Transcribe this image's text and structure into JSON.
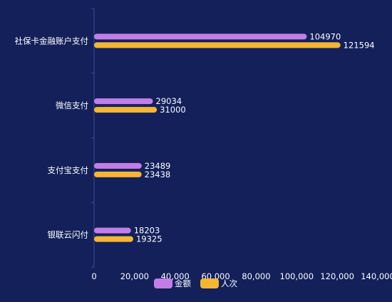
{
  "chart_data": {
    "type": "bar",
    "orientation": "horizontal",
    "categories": [
      "社保卡金融账户支付",
      "微信支付",
      "支付宝支付",
      "银联云闪付"
    ],
    "series": [
      {
        "name": "金额",
        "values": [
          104970,
          29034,
          23489,
          18203
        ],
        "color": "#c27ee6"
      },
      {
        "name": "人次",
        "values": [
          121594,
          31000,
          23438,
          19325
        ],
        "color": "#f7b531"
      }
    ],
    "x_ticks": [
      "0",
      "20,000",
      "40,000",
      "60,000",
      "80,000",
      "100,000",
      "120,000",
      "140,000"
    ],
    "xlim": [
      0,
      140000
    ],
    "legend_position": "bottom-center",
    "grid": false,
    "colors": {
      "background": "#13205a",
      "axis_line": "#3b4f95",
      "text": "#ffffff"
    }
  }
}
